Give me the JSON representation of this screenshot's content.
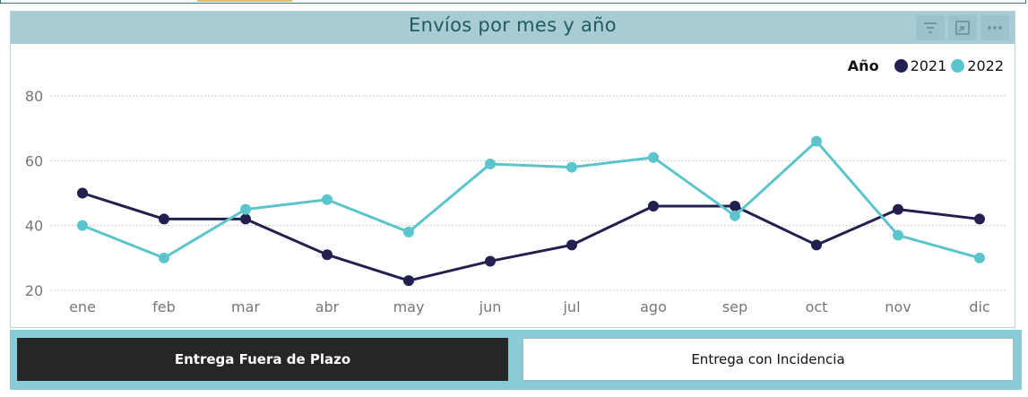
{
  "header": {
    "title": "Envíos por mes y año"
  },
  "header_icons": [
    "filter-icon",
    "focus-mode-icon",
    "more-options-icon"
  ],
  "colors": {
    "s2021": "#22204f",
    "s2022": "#5bc4cc"
  },
  "chart_data": {
    "type": "line",
    "title": "Envíos por mes y año",
    "xlabel": "",
    "ylabel": "",
    "categories": [
      "ene",
      "feb",
      "mar",
      "abr",
      "may",
      "jun",
      "jul",
      "ago",
      "sep",
      "oct",
      "nov",
      "dic"
    ],
    "series": [
      {
        "name": "2021",
        "values": [
          50,
          42,
          42,
          31,
          23,
          29,
          34,
          46,
          46,
          34,
          45,
          42
        ]
      },
      {
        "name": "2022",
        "values": [
          40,
          30,
          45,
          48,
          38,
          59,
          58,
          61,
          43,
          66,
          37,
          30
        ]
      }
    ],
    "ylim": [
      20,
      80
    ],
    "yticks": [
      "20",
      "40",
      "60",
      "80"
    ],
    "grid": true,
    "legend": {
      "title": "Año",
      "position": "top-right"
    }
  },
  "buttons": {
    "fuera_plazo": "Entrega Fuera de Plazo",
    "incidencia": "Entrega con Incidencia"
  }
}
